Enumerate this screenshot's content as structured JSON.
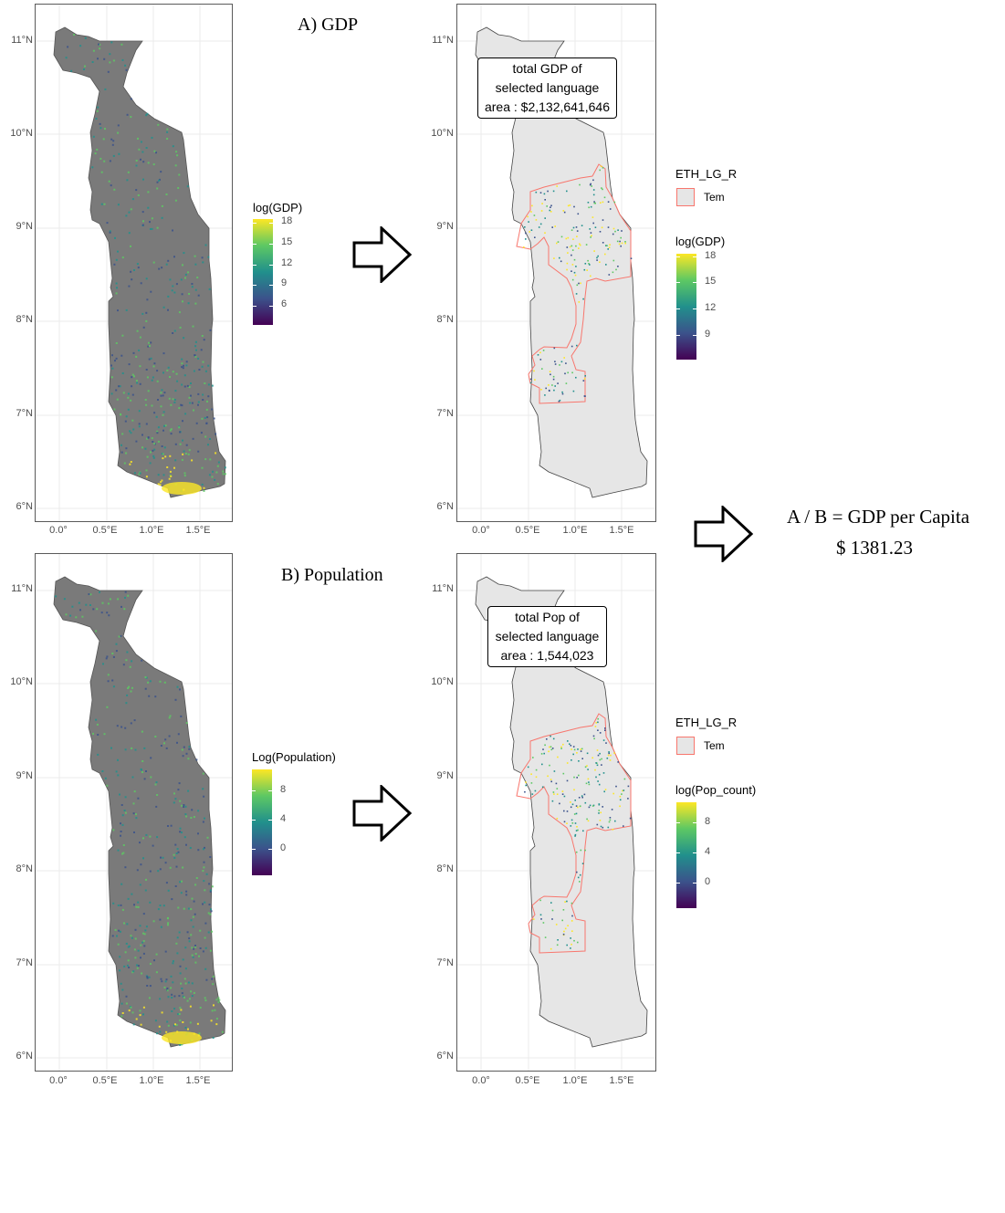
{
  "panels": {
    "gdp": {
      "title": "A) GDP",
      "legend_title": "log(GDP)",
      "legend_ticks": [
        "18",
        "15",
        "12",
        "9",
        "6"
      ]
    },
    "pop": {
      "title": "B) Population",
      "legend_title": "Log(Population)",
      "legend_ticks": [
        "8",
        "4",
        "0"
      ]
    },
    "gdp_selected": {
      "annotation": [
        "total GDP of",
        "selected language",
        "area : $2,132,641,646"
      ],
      "key_title": "ETH_LG_R",
      "key_label": "Tem",
      "legend_title": "log(GDP)",
      "legend_ticks": [
        "18",
        "15",
        "12",
        "9"
      ]
    },
    "pop_selected": {
      "annotation": [
        "total Pop of",
        "selected language",
        "area : 1,544,023"
      ],
      "key_title": "ETH_LG_R",
      "key_label": "Tem",
      "legend_title": "log(Pop_count)",
      "legend_ticks": [
        "8",
        "4",
        "0"
      ]
    }
  },
  "axes": {
    "y_ticks": [
      "11°N",
      "10°N",
      "9°N",
      "8°N",
      "7°N",
      "6°N"
    ],
    "x_ticks": [
      "0.0°",
      "0.5°E",
      "1.0°E",
      "1.5°E"
    ]
  },
  "result": {
    "formula": "A / B = GDP per Capita",
    "value": "$ 1381.23"
  },
  "colors": {
    "viridis": [
      "#440154",
      "#3b528b",
      "#21908c",
      "#5dc863",
      "#fde725"
    ],
    "country_fill_raster": "#7a7a7a",
    "country_fill_selected": "#e6e6e6",
    "region_outline": "#f8766d"
  },
  "icons": [
    "right-arrow-icon"
  ]
}
